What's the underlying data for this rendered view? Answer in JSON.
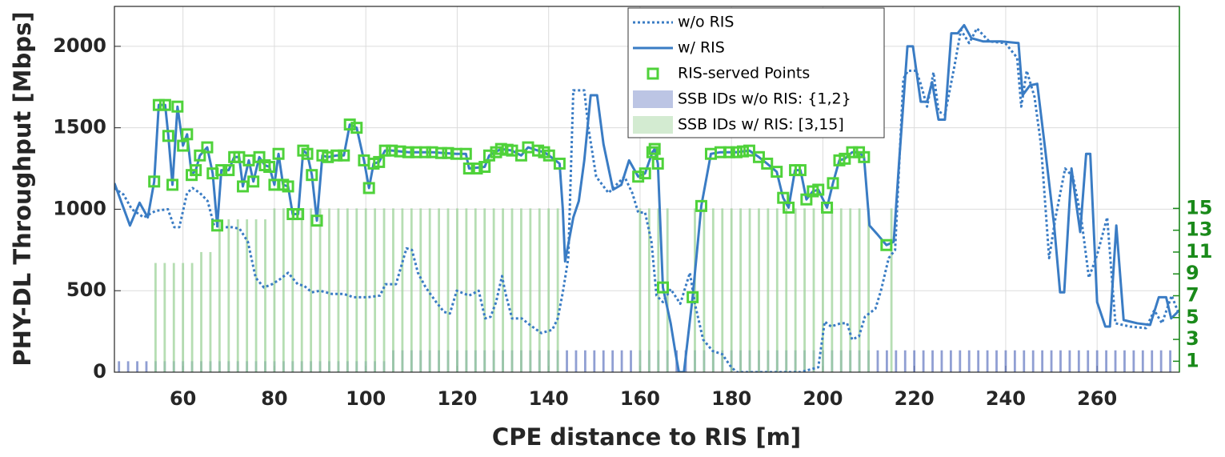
{
  "chart_data": {
    "type": "line",
    "xlabel": "CPE distance to RIS [m]",
    "ylabel": "PHY-DL Throughput [Mbps]",
    "xlim": [
      45,
      278
    ],
    "ylim": [
      0,
      2245
    ],
    "y2lim": [
      0,
      33.5
    ],
    "xticks": [
      60,
      80,
      100,
      120,
      140,
      160,
      180,
      200,
      220,
      240,
      260
    ],
    "yticks": [
      0,
      500,
      1000,
      1500,
      2000
    ],
    "y2ticks": [
      1,
      3,
      5,
      7,
      9,
      11,
      13,
      15
    ],
    "y2color": "#1a8a1a",
    "grid": true,
    "legend": "top",
    "series": [
      {
        "name": "w/o RIS",
        "kind": "line",
        "dash": "dotted",
        "color": "#3a7cc4",
        "x": [
          45,
          47,
          48.8,
          51.4,
          54,
          56.7,
          58.1,
          59.2,
          60.9,
          62.1,
          63.7,
          65.4,
          66.8,
          68.2,
          70.7,
          72.4,
          74.2,
          75.9,
          77.7,
          79.5,
          81.2,
          83,
          85.1,
          86.5,
          88.2,
          90,
          92.6,
          95.2,
          97.3,
          100.5,
          103.1,
          104.3,
          106.6,
          108.9,
          110.1,
          111.4,
          113.1,
          115.4,
          117.1,
          118.4,
          119.9,
          122.6,
          124.7,
          126.1,
          127.3,
          128.5,
          129.8,
          130.6,
          132,
          134.1,
          135.9,
          138.4,
          140.8,
          142,
          143.1,
          144.3,
          145.4,
          147.8,
          148.7,
          150.4,
          153.1,
          154.8,
          156.6,
          158.3,
          159.6,
          161.1,
          162.5,
          163.6,
          165,
          166.7,
          168.8,
          170.9,
          172,
          173.8,
          175.9,
          178,
          179.7,
          181.1,
          188.1,
          195.1,
          199,
          200.4,
          201.8,
          203.9,
          205.3,
          206.4,
          207.9,
          209.2,
          211.5,
          212.7,
          214.4,
          215.8,
          217.6,
          218.6,
          220.4,
          221.4,
          222.8,
          224.2,
          225.3,
          226.7,
          228.8,
          230.2,
          232,
          233.7,
          236.4,
          239.9,
          242.5,
          243.4,
          244.6,
          246.3,
          247.7,
          249.5,
          250.9,
          253,
          254.7,
          256.5,
          258.2,
          260,
          262.2,
          264,
          267.2,
          270.7,
          272.5,
          274.2,
          276.3,
          278
        ],
        "values": [
          1130,
          1090,
          1000,
          950,
          990,
          1000,
          890,
          890,
          1100,
          1130,
          1100,
          1050,
          900,
          890,
          890,
          880,
          800,
          580,
          520,
          540,
          570,
          610,
          540,
          530,
          490,
          500,
          480,
          480,
          460,
          460,
          470,
          540,
          540,
          760,
          750,
          610,
          520,
          430,
          370,
          360,
          500,
          470,
          500,
          330,
          340,
          430,
          590,
          480,
          330,
          330,
          290,
          240,
          260,
          330,
          490,
          700,
          1730,
          1730,
          1500,
          1200,
          1100,
          1150,
          1200,
          1100,
          980,
          980,
          800,
          470,
          430,
          510,
          420,
          610,
          420,
          200,
          130,
          110,
          40,
          0,
          0,
          0,
          30,
          310,
          280,
          300,
          300,
          200,
          220,
          340,
          390,
          500,
          700,
          750,
          1800,
          1850,
          1850,
          1770,
          1630,
          1840,
          1600,
          1580,
          1880,
          2100,
          2020,
          2110,
          2030,
          2020,
          1930,
          1630,
          1850,
          1690,
          1400,
          700,
          950,
          1250,
          1200,
          950,
          580,
          720,
          950,
          300,
          280,
          270,
          380,
          300,
          470,
          350
        ]
      },
      {
        "name": "w/ RIS",
        "kind": "line",
        "dash": "solid",
        "color": "#3a7cc4",
        "x": [
          45,
          48.4,
          50.5,
          52.3,
          53.7,
          54.7,
          56.1,
          56.8,
          57.7,
          58.8,
          60,
          60.9,
          61.9,
          62.8,
          63.7,
          65.3,
          66.5,
          67.5,
          68.4,
          70,
          71.2,
          72.3,
          73.1,
          74.4,
          75.4,
          76.7,
          77.9,
          78.9,
          80,
          80.9,
          81.9,
          83,
          84,
          85.2,
          86.3,
          87.2,
          88.2,
          89.3,
          90.5,
          91.7,
          93.6,
          95.2,
          96.5,
          98,
          99.6,
          100.7,
          101.7,
          102.9,
          104.2,
          105.7,
          109.3,
          114.5,
          119.8,
          121.9,
          122.6,
          126,
          127,
          129.6,
          132,
          134,
          135.5,
          137.7,
          139,
          140.1,
          142.4,
          143.1,
          143.6,
          145.4,
          146.6,
          147.8,
          149.2,
          150.6,
          152,
          154.1,
          155.9,
          157.6,
          159.6,
          161.1,
          162.7,
          163.2,
          163.9,
          165,
          166.7,
          167.8,
          168.5,
          169.6,
          171.5,
          173.4,
          175.5,
          177.6,
          181.1,
          183.9,
          186,
          187.8,
          189.9,
          191.3,
          192.5,
          193.9,
          195.1,
          196.4,
          197.8,
          199,
          200.9,
          202.2,
          203.6,
          204.8,
          206.4,
          207.9,
          209,
          210.2,
          211.8,
          213.9,
          215.5,
          216.7,
          218.5,
          219.7,
          221.4,
          222.8,
          223.9,
          225.3,
          226.7,
          228.1,
          229.5,
          230.9,
          232.5,
          235.1,
          239,
          242.8,
          243.7,
          245.3,
          246.9,
          248.5,
          250.6,
          251.9,
          252.8,
          254.4,
          255.1,
          256.3,
          257.6,
          258.5,
          260,
          261.8,
          262.8,
          264.2,
          265.8,
          268.8,
          271.6,
          273.5,
          275.1,
          276.2,
          278
        ],
        "values": [
          1160,
          900,
          1040,
          950,
          1170,
          1640,
          1640,
          1450,
          1150,
          1630,
          1390,
          1460,
          1210,
          1240,
          1330,
          1380,
          1220,
          900,
          1240,
          1240,
          1320,
          1320,
          1140,
          1300,
          1170,
          1320,
          1270,
          1260,
          1150,
          1340,
          1150,
          1140,
          970,
          970,
          1360,
          1340,
          1210,
          930,
          1330,
          1320,
          1330,
          1330,
          1520,
          1500,
          1300,
          1130,
          1280,
          1290,
          1360,
          1360,
          1350,
          1350,
          1340,
          1340,
          1250,
          1260,
          1330,
          1370,
          1360,
          1330,
          1380,
          1360,
          1350,
          1330,
          1280,
          1000,
          680,
          950,
          1050,
          1300,
          1700,
          1700,
          1400,
          1120,
          1150,
          1300,
          1200,
          1220,
          1350,
          1370,
          1280,
          520,
          300,
          110,
          0,
          0,
          460,
          1020,
          1340,
          1350,
          1350,
          1360,
          1320,
          1280,
          1230,
          1070,
          1010,
          1240,
          1240,
          1060,
          1110,
          1120,
          1010,
          1160,
          1300,
          1310,
          1350,
          1350,
          1320,
          900,
          850,
          780,
          800,
          1300,
          2000,
          2000,
          1660,
          1660,
          1780,
          1550,
          1550,
          2080,
          2080,
          2130,
          2050,
          2030,
          2030,
          2020,
          1700,
          1760,
          1770,
          1400,
          900,
          490,
          490,
          1250,
          1100,
          860,
          1340,
          1340,
          430,
          280,
          280,
          900,
          320,
          300,
          290,
          460,
          460,
          330,
          380
        ]
      },
      {
        "name": "RIS-served Points",
        "kind": "scatter",
        "color": "#4fd23a",
        "x": [
          53.7,
          54.7,
          56.1,
          56.8,
          57.7,
          58.8,
          60,
          60.9,
          61.9,
          62.8,
          63.7,
          65.3,
          66.5,
          67.5,
          68.4,
          70,
          71.2,
          72.3,
          73.1,
          74.4,
          75.4,
          76.7,
          77.9,
          78.9,
          80,
          80.9,
          81.9,
          83,
          84,
          85.2,
          86.3,
          87.2,
          88.2,
          89.3,
          90.5,
          91.7,
          93.6,
          95.2,
          96.5,
          98,
          99.6,
          100.7,
          101.7,
          102.9,
          104.2,
          105.7,
          107.5,
          109.3,
          111,
          113,
          114.5,
          116.5,
          118,
          119.8,
          121.9,
          122.6,
          124.3,
          126,
          127,
          128.5,
          129.6,
          131,
          132,
          134,
          135.5,
          137.7,
          139,
          140.1,
          142.4,
          159.6,
          161.1,
          162.7,
          163.2,
          163.9,
          165,
          171.5,
          173.4,
          175.5,
          177.6,
          179.5,
          181.1,
          182.5,
          183.9,
          186,
          187.8,
          189.9,
          191.3,
          192.5,
          193.9,
          195.1,
          196.4,
          197.8,
          199,
          200.9,
          202.2,
          203.6,
          204.8,
          206.4,
          207.9,
          209,
          213.9
        ],
        "values": [
          1170,
          1640,
          1640,
          1450,
          1150,
          1630,
          1390,
          1460,
          1210,
          1240,
          1330,
          1380,
          1220,
          900,
          1240,
          1240,
          1320,
          1320,
          1140,
          1300,
          1170,
          1320,
          1270,
          1260,
          1150,
          1340,
          1150,
          1140,
          970,
          970,
          1360,
          1340,
          1210,
          930,
          1330,
          1320,
          1330,
          1330,
          1520,
          1500,
          1300,
          1130,
          1280,
          1290,
          1360,
          1360,
          1355,
          1350,
          1350,
          1350,
          1350,
          1345,
          1345,
          1340,
          1340,
          1250,
          1250,
          1260,
          1330,
          1350,
          1370,
          1365,
          1360,
          1330,
          1380,
          1360,
          1350,
          1330,
          1280,
          1200,
          1220,
          1350,
          1370,
          1280,
          520,
          460,
          1020,
          1340,
          1350,
          1350,
          1350,
          1355,
          1360,
          1320,
          1280,
          1230,
          1070,
          1010,
          1240,
          1240,
          1060,
          1110,
          1120,
          1010,
          1160,
          1300,
          1310,
          1350,
          1350,
          1320,
          780
        ]
      },
      {
        "name": "SSB IDs w/o RIS: {1,2}",
        "kind": "bar",
        "axis": "y2",
        "color": "#6b7fc4",
        "x": [
          46,
          48,
          50,
          52,
          54,
          56,
          58,
          60,
          62,
          64,
          66,
          68,
          70,
          72,
          74,
          76,
          78,
          80,
          82,
          84,
          86,
          88,
          90,
          92,
          94,
          96,
          98,
          100,
          102,
          104,
          106,
          108,
          110,
          112,
          114,
          116,
          118,
          120,
          122,
          124,
          126,
          128,
          130,
          132,
          134,
          136,
          138,
          140,
          142,
          144,
          146,
          148,
          150,
          152,
          154,
          156,
          158,
          160,
          162,
          164,
          166,
          168,
          170,
          172,
          174,
          176,
          178,
          180,
          182,
          184,
          186,
          188,
          190,
          192,
          194,
          196,
          198,
          200,
          202,
          204,
          206,
          208,
          210,
          212,
          214,
          216,
          218,
          220,
          222,
          224,
          226,
          228,
          230,
          232,
          234,
          236,
          238,
          240,
          242,
          244,
          246,
          248,
          250,
          252,
          254,
          256,
          258,
          260,
          262,
          264,
          266,
          268,
          270,
          272,
          274,
          276
        ],
        "values": [
          1,
          1,
          1,
          1,
          1,
          1,
          1,
          1,
          1,
          1,
          1,
          1,
          1,
          1,
          1,
          1,
          1,
          1,
          1,
          1,
          1,
          1,
          1,
          1,
          1,
          1,
          1,
          1,
          1,
          1,
          2,
          2,
          2,
          2,
          2,
          2,
          2,
          2,
          2,
          2,
          2,
          2,
          2,
          2,
          2,
          2,
          2,
          2,
          2,
          2,
          2,
          2,
          2,
          2,
          2,
          2,
          2,
          2,
          2,
          2,
          2,
          2,
          2,
          2,
          2,
          2,
          2,
          2,
          2,
          2,
          2,
          2,
          2,
          2,
          2,
          2,
          2,
          2,
          2,
          2,
          2,
          2,
          2,
          2,
          2,
          2,
          2,
          2,
          2,
          2,
          2,
          2,
          2,
          2,
          2,
          2,
          2,
          2,
          2,
          2,
          2,
          2,
          2,
          2,
          2,
          2,
          2,
          2,
          2,
          2,
          2,
          2,
          2,
          2,
          2,
          2
        ]
      },
      {
        "name": "SSB IDs w/ RIS: [3,15]",
        "kind": "bar",
        "axis": "y2",
        "color": "#9ed39a",
        "x": [
          54,
          56,
          58,
          60,
          62,
          64,
          66,
          68,
          70,
          72,
          74,
          76,
          78,
          80,
          82,
          84,
          86,
          88,
          90,
          92,
          94,
          96,
          98,
          100,
          102,
          104,
          106,
          108,
          110,
          112,
          114,
          116,
          118,
          120,
          122,
          124,
          126,
          128,
          130,
          132,
          134,
          136,
          138,
          140,
          142,
          160,
          162,
          164,
          166,
          172,
          174,
          176,
          178,
          180,
          182,
          184,
          186,
          188,
          190,
          192,
          194,
          196,
          198,
          200,
          202,
          204,
          206,
          208,
          210,
          215
        ],
        "values": [
          10,
          10,
          10,
          10,
          10,
          11,
          11,
          14,
          14,
          14,
          14,
          14,
          14,
          15,
          15,
          15,
          15,
          15,
          15,
          15,
          15,
          15,
          15,
          15,
          15,
          15,
          15,
          15,
          15,
          15,
          15,
          15,
          15,
          15,
          15,
          15,
          15,
          15,
          15,
          15,
          15,
          15,
          15,
          15,
          15,
          15,
          15,
          15,
          15,
          15,
          15,
          15,
          15,
          15,
          15,
          15,
          15,
          15,
          15,
          15,
          15,
          15,
          15,
          15,
          15,
          15,
          15,
          15,
          15,
          15
        ]
      }
    ]
  }
}
